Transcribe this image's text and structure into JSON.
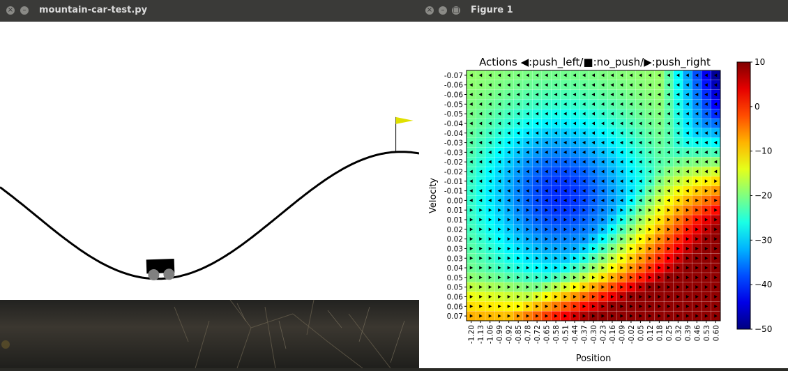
{
  "left_window": {
    "title": "mountain-car-test.py",
    "close_glyph": "×",
    "min_glyph": "–"
  },
  "right_window": {
    "title": "Figure 1",
    "close_glyph": "×",
    "min_glyph": "–",
    "max_glyph": "□"
  },
  "scene": {
    "flag_color": "#e0e000",
    "track_color": "#000000",
    "car_color": "#000000",
    "wheel_color": "#808080",
    "car_position": -0.51
  },
  "chart_data": {
    "type": "heatmap",
    "title": "Actions ◀:push_left/■:no_push/▶:push_right",
    "xlabel": "Position",
    "ylabel": "Velocity",
    "xticks": [
      "-1.20",
      "-1.13",
      "-1.06",
      "-0.99",
      "-0.92",
      "-0.85",
      "-0.78",
      "-0.72",
      "-0.65",
      "-0.58",
      "-0.51",
      "-0.44",
      "-0.37",
      "-0.30",
      "-0.23",
      "-0.16",
      "-0.09",
      "-0.02",
      "0.05",
      "0.12",
      "0.18",
      "0.25",
      "0.32",
      "0.39",
      "0.46",
      "0.53",
      "0.60"
    ],
    "yticks": [
      "-0.07",
      "-0.06",
      "-0.06",
      "-0.05",
      "-0.05",
      "-0.04",
      "-0.04",
      "-0.03",
      "-0.03",
      "-0.02",
      "-0.02",
      "-0.01",
      "-0.01",
      "0.00",
      "0.01",
      "0.01",
      "0.02",
      "0.02",
      "0.03",
      "0.03",
      "0.04",
      "0.05",
      "0.05",
      "0.06",
      "0.06",
      "0.07"
    ],
    "colorbar": {
      "min": -50,
      "max": 10,
      "ticks": [
        "10",
        "0",
        "−10",
        "−20",
        "−30",
        "−40",
        "−50"
      ],
      "colormap": "jet"
    },
    "grid": true,
    "value_model": {
      "description_note": "cell value v(row,col), row 0 = top (velocity -0.07), col 0 = left (position -1.20)",
      "base": -38,
      "center_col": 10,
      "center_row": 12,
      "action_rule": "left_if_velocity_negative_right_if_positive"
    }
  }
}
